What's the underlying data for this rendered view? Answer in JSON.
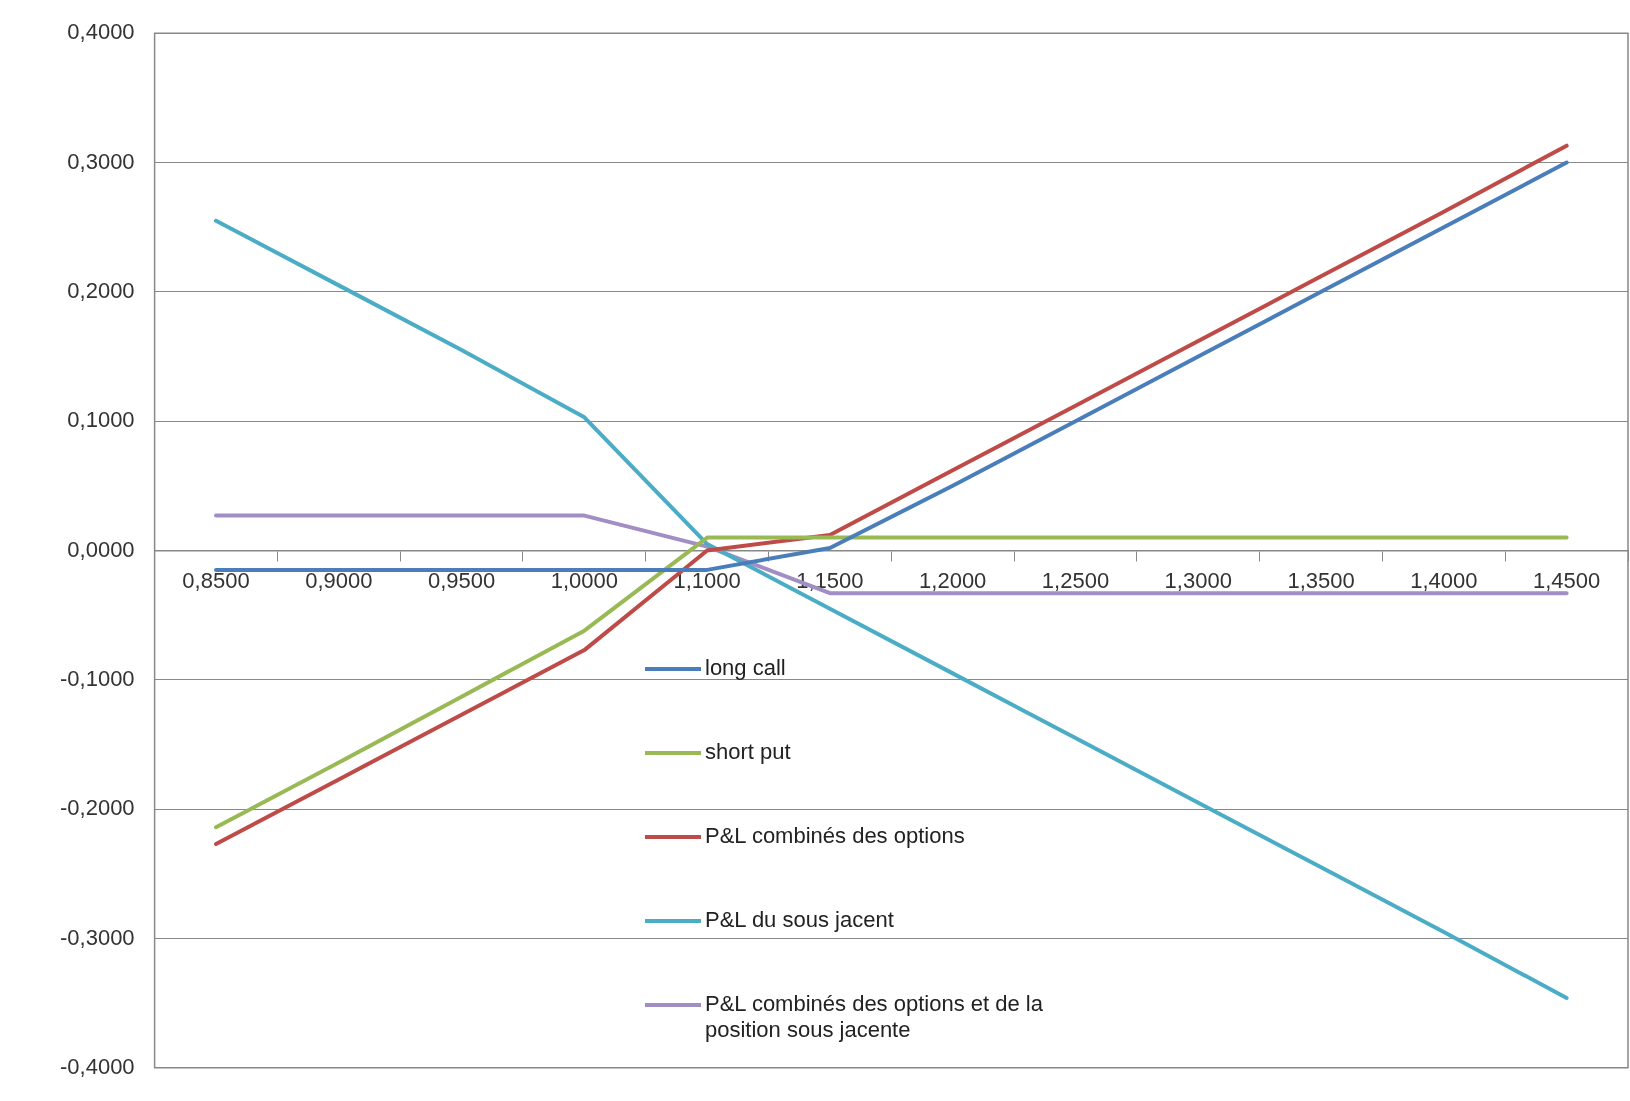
{
  "chart_data": {
    "type": "line",
    "categories": [
      "0,8500",
      "0,9000",
      "0,9500",
      "1,0000",
      "1,1000",
      "1,1500",
      "1,2000",
      "1,2500",
      "1,3000",
      "1,3500",
      "1,4000",
      "1,4500"
    ],
    "ylim": [
      -0.4,
      0.4
    ],
    "yticks": [
      {
        "value": -0.4,
        "label": "-0,4000"
      },
      {
        "value": -0.3,
        "label": "-0,3000"
      },
      {
        "value": -0.2,
        "label": "-0,2000"
      },
      {
        "value": -0.1,
        "label": "-0,1000"
      },
      {
        "value": 0,
        "label": "0,0000"
      },
      {
        "value": 0.1,
        "label": "0,1000"
      },
      {
        "value": 0.2,
        "label": "0,2000"
      },
      {
        "value": 0.3,
        "label": "0,3000"
      },
      {
        "value": 0.4,
        "label": "0,4000"
      }
    ],
    "grid": "y",
    "legend": "bottom",
    "line_style": "solid",
    "series": [
      {
        "name": "long call",
        "color": "#4a7ebb",
        "values": [
          -0.015,
          -0.015,
          -0.015,
          -0.015,
          -0.015,
          0.002,
          0.05,
          0.1,
          0.15,
          0.2,
          0.25,
          0.3
        ]
      },
      {
        "name": "short put",
        "color": "#98b954",
        "values": [
          -0.214,
          -0.164,
          -0.113,
          -0.062,
          0.01,
          0.01,
          0.01,
          0.01,
          0.01,
          0.01,
          0.01,
          0.01
        ]
      },
      {
        "name": "P&L combinés des options",
        "color": "#be4b48",
        "values": [
          -0.227,
          -0.177,
          -0.127,
          -0.077,
          0.0,
          0.012,
          0.062,
          0.112,
          0.162,
          0.212,
          0.262,
          0.313
        ]
      },
      {
        "name": "P&L du sous jacent",
        "color": "#4bacc6",
        "values": [
          0.255,
          0.205,
          0.155,
          0.103,
          0.005,
          -0.045,
          -0.095,
          -0.145,
          -0.195,
          -0.245,
          -0.295,
          -0.346
        ]
      },
      {
        "name": "P&L combinés des options et de la position sous jacente",
        "color": "#a08ec4",
        "values": [
          0.027,
          0.027,
          0.027,
          0.027,
          0.003,
          -0.033,
          -0.033,
          -0.033,
          -0.033,
          -0.033,
          -0.033,
          -0.033
        ]
      }
    ]
  }
}
